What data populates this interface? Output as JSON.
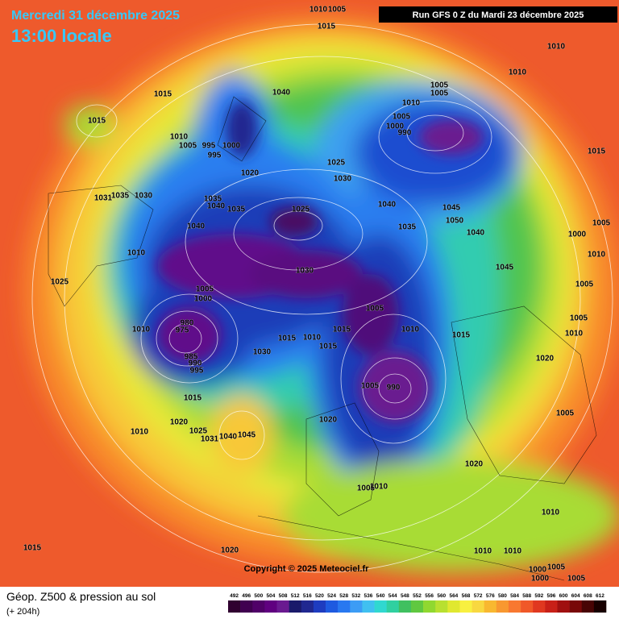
{
  "header": {
    "date": "Mercredi 31 décembre 2025",
    "time": "13:00 locale",
    "run": "Run GFS 0 Z du Mardi 23 décembre 2025"
  },
  "footer": {
    "copyright": "Copyright © 2025 Meteociel.fr",
    "product": "Géop. Z500 & pression au sol",
    "lead": "(+ 204h)"
  },
  "map": {
    "isobar_labels": [
      1010,
      1005,
      1015,
      1015,
      1015,
      1010,
      1005,
      995,
      995,
      1000,
      1040,
      1020,
      1035,
      1040,
      1035,
      1031,
      1035,
      1030,
      1040,
      1025,
      1040,
      1035,
      1045,
      1050,
      1040,
      1030,
      1025,
      1005,
      1005,
      1010,
      1005,
      1000,
      990,
      1010,
      1010,
      1015,
      1005,
      1000,
      1010,
      1045,
      1005,
      1005,
      1010,
      1015,
      1020,
      1010,
      1005,
      1015,
      1015,
      1015,
      1010,
      1030,
      1010,
      1005,
      1000,
      1025,
      1010,
      980,
      975,
      985,
      990,
      995,
      1030,
      1015,
      990,
      1005,
      1020,
      1010,
      1020,
      1025,
      1031,
      1040,
      1045,
      1020,
      1005,
      1005,
      1010,
      1010,
      1015,
      1020,
      1010,
      1010,
      1005,
      1000,
      1005,
      1000
    ]
  },
  "scale": {
    "values": [
      492,
      496,
      500,
      504,
      508,
      512,
      516,
      520,
      524,
      528,
      532,
      536,
      540,
      544,
      548,
      552,
      556,
      560,
      564,
      568,
      572,
      576,
      580,
      584,
      588,
      592,
      596,
      600,
      604,
      608,
      612
    ],
    "colors": [
      "#300030",
      "#400050",
      "#500068",
      "#600080",
      "#6a1a90",
      "#1a1a6a",
      "#202890",
      "#1e3cc0",
      "#1e5ae0",
      "#2878f0",
      "#3c9cf5",
      "#40c0f0",
      "#30d8d0",
      "#30d0a0",
      "#40c060",
      "#60c840",
      "#90d830",
      "#b8e030",
      "#e0e830",
      "#f8f040",
      "#f8d840",
      "#f8b830",
      "#f89830",
      "#f87830",
      "#f05828",
      "#e03820",
      "#c82018",
      "#a01010",
      "#780808",
      "#480404",
      "#180000"
    ]
  }
}
